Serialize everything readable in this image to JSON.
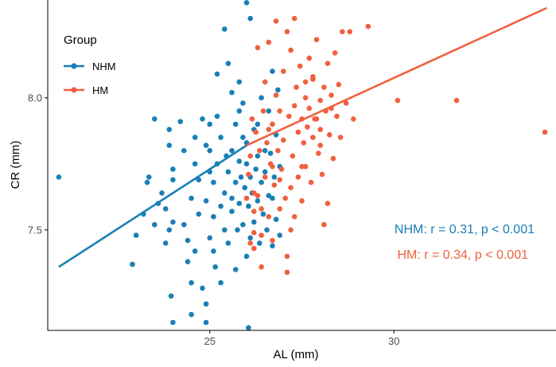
{
  "colors": {
    "nhm": "#1a7fb5",
    "hm": "#f0603f",
    "axis": "#000000",
    "text": "#000000",
    "tick_text": "#4d4d4d"
  },
  "chart_data": {
    "type": "scatter",
    "title": "",
    "xlabel": "AL (mm)",
    "ylabel": "CR (mm)",
    "xlim": [
      20.6,
      34.4
    ],
    "ylim": [
      7.12,
      8.37
    ],
    "xticks": [
      25,
      30
    ],
    "yticks": [
      7.5,
      8.0
    ],
    "grid": false,
    "legend": {
      "title": "Group",
      "position": "top-left",
      "entries": [
        "NHM",
        "HM"
      ]
    },
    "annotations": [
      {
        "text": "NHM: r = 0.31, p < 0.001",
        "series": "NHM"
      },
      {
        "text": "HM: r = 0.34, p < 0.001",
        "series": "HM"
      }
    ],
    "series": [
      {
        "name": "NHM",
        "points": [
          [
            20.9,
            7.7
          ],
          [
            22.9,
            7.37
          ],
          [
            23.0,
            7.48
          ],
          [
            23.2,
            7.56
          ],
          [
            23.3,
            7.68
          ],
          [
            23.35,
            7.7
          ],
          [
            23.5,
            7.52
          ],
          [
            23.5,
            7.92
          ],
          [
            23.6,
            7.6
          ],
          [
            23.7,
            7.64
          ],
          [
            23.8,
            7.45
          ],
          [
            23.8,
            7.58
          ],
          [
            23.9,
            7.82
          ],
          [
            23.9,
            7.5
          ],
          [
            24.0,
            7.73
          ],
          [
            24.0,
            7.69
          ],
          [
            24.0,
            7.53
          ],
          [
            23.95,
            7.25
          ],
          [
            24.0,
            7.15
          ],
          [
            24.2,
            7.91
          ],
          [
            24.3,
            7.8
          ],
          [
            24.3,
            7.52
          ],
          [
            24.4,
            7.46
          ],
          [
            24.4,
            7.38
          ],
          [
            24.5,
            7.62
          ],
          [
            24.5,
            7.3
          ],
          [
            24.6,
            7.42
          ],
          [
            24.6,
            7.85
          ],
          [
            24.7,
            7.69
          ],
          [
            24.7,
            7.56
          ],
          [
            24.8,
            7.28
          ],
          [
            24.8,
            7.92
          ],
          [
            24.9,
            7.61
          ],
          [
            24.9,
            7.82
          ],
          [
            25.0,
            7.47
          ],
          [
            25.0,
            7.72
          ],
          [
            25.0,
            7.9
          ],
          [
            24.9,
            7.15
          ],
          [
            24.9,
            7.22
          ],
          [
            25.1,
            7.55
          ],
          [
            25.1,
            7.68
          ],
          [
            25.1,
            7.42
          ],
          [
            25.15,
            7.36
          ],
          [
            25.2,
            7.75
          ],
          [
            25.2,
            7.93
          ],
          [
            25.3,
            7.59
          ],
          [
            25.3,
            7.3
          ],
          [
            25.3,
            7.85
          ],
          [
            25.4,
            7.64
          ],
          [
            25.4,
            7.5
          ],
          [
            25.45,
            7.78
          ],
          [
            25.5,
            8.13
          ],
          [
            25.5,
            7.72
          ],
          [
            25.5,
            7.45
          ],
          [
            25.6,
            7.62
          ],
          [
            25.6,
            7.8
          ],
          [
            25.6,
            7.57
          ],
          [
            25.7,
            7.9
          ],
          [
            25.7,
            7.68
          ],
          [
            25.7,
            7.35
          ],
          [
            25.75,
            7.5
          ],
          [
            25.8,
            7.76
          ],
          [
            25.8,
            8.06
          ],
          [
            25.8,
            7.6
          ],
          [
            25.85,
            7.7
          ],
          [
            25.9,
            7.85
          ],
          [
            25.9,
            7.52
          ],
          [
            25.9,
            7.98
          ],
          [
            25.95,
            7.66
          ],
          [
            26.0,
            7.4
          ],
          [
            26.0,
            7.75
          ],
          [
            26.0,
            7.83
          ],
          [
            26.05,
            7.59
          ],
          [
            26.1,
            7.7
          ],
          [
            26.1,
            7.47
          ],
          [
            26.15,
            7.64
          ],
          [
            26.2,
            7.88
          ],
          [
            26.2,
            7.53
          ],
          [
            26.25,
            7.73
          ],
          [
            26.3,
            7.61
          ],
          [
            26.3,
            7.78
          ],
          [
            26.35,
            7.45
          ],
          [
            26.4,
            7.68
          ],
          [
            26.4,
            8.0
          ],
          [
            26.45,
            7.56
          ],
          [
            26.5,
            7.8
          ],
          [
            26.5,
            7.72
          ],
          [
            26.55,
            7.5
          ],
          [
            26.6,
            7.95
          ],
          [
            26.6,
            7.63
          ],
          [
            26.65,
            7.79
          ],
          [
            26.7,
            7.44
          ],
          [
            26.7,
            8.1
          ],
          [
            26.75,
            7.7
          ],
          [
            26.8,
            7.86
          ],
          [
            26.8,
            7.54
          ],
          [
            26.85,
            8.03
          ],
          [
            26.9,
            7.74
          ],
          [
            26.9,
            7.48
          ],
          [
            25.2,
            8.09
          ],
          [
            26.0,
            8.36
          ],
          [
            26.1,
            8.3
          ],
          [
            25.4,
            8.26
          ],
          [
            25.6,
            8.02
          ],
          [
            26.05,
            7.13
          ],
          [
            24.5,
            7.18
          ],
          [
            25.8,
            7.95
          ],
          [
            26.3,
            7.9
          ],
          [
            25.0,
            7.8
          ],
          [
            24.6,
            7.75
          ],
          [
            23.9,
            7.88
          ],
          [
            26.7,
            7.62
          ]
        ]
      },
      {
        "name": "HM",
        "points": [
          [
            26.0,
            7.62
          ],
          [
            26.05,
            7.71
          ],
          [
            26.1,
            7.78
          ],
          [
            26.1,
            7.45
          ],
          [
            26.15,
            7.92
          ],
          [
            26.2,
            7.57
          ],
          [
            26.2,
            7.64
          ],
          [
            26.25,
            7.87
          ],
          [
            26.3,
            7.63
          ],
          [
            26.35,
            7.8
          ],
          [
            26.4,
            7.48
          ],
          [
            26.45,
            7.95
          ],
          [
            26.5,
            8.06
          ],
          [
            26.5,
            7.7
          ],
          [
            26.55,
            7.83
          ],
          [
            26.6,
            7.55
          ],
          [
            26.6,
            8.21
          ],
          [
            26.65,
            7.75
          ],
          [
            26.7,
            7.9
          ],
          [
            26.7,
            7.46
          ],
          [
            26.75,
            7.67
          ],
          [
            26.8,
            8.01
          ],
          [
            26.85,
            7.8
          ],
          [
            26.9,
            7.58
          ],
          [
            26.9,
            7.95
          ],
          [
            26.95,
            7.73
          ],
          [
            27.0,
            8.1
          ],
          [
            27.0,
            7.84
          ],
          [
            27.05,
            7.62
          ],
          [
            27.1,
            8.25
          ],
          [
            27.1,
            7.4
          ],
          [
            27.15,
            7.93
          ],
          [
            27.2,
            7.66
          ],
          [
            27.2,
            8.18
          ],
          [
            27.25,
            7.78
          ],
          [
            27.3,
            7.55
          ],
          [
            27.3,
            7.97
          ],
          [
            27.35,
            8.04
          ],
          [
            27.4,
            7.87
          ],
          [
            27.4,
            7.7
          ],
          [
            27.45,
            8.12
          ],
          [
            27.5,
            7.92
          ],
          [
            27.5,
            7.61
          ],
          [
            27.55,
            7.83
          ],
          [
            27.6,
            8.0
          ],
          [
            27.6,
            7.74
          ],
          [
            27.65,
            7.89
          ],
          [
            27.7,
            8.15
          ],
          [
            27.7,
            7.96
          ],
          [
            27.75,
            7.68
          ],
          [
            27.8,
            7.85
          ],
          [
            27.8,
            8.07
          ],
          [
            27.85,
            7.92
          ],
          [
            27.9,
            8.22
          ],
          [
            27.95,
            7.79
          ],
          [
            28.0,
            7.99
          ],
          [
            28.0,
            7.88
          ],
          [
            28.05,
            7.71
          ],
          [
            28.1,
            8.04
          ],
          [
            28.1,
            7.52
          ],
          [
            28.15,
            7.95
          ],
          [
            28.2,
            8.13
          ],
          [
            28.25,
            7.86
          ],
          [
            28.3,
            8.01
          ],
          [
            28.35,
            7.77
          ],
          [
            28.4,
            8.17
          ],
          [
            28.45,
            7.93
          ],
          [
            28.5,
            8.05
          ],
          [
            28.55,
            7.85
          ],
          [
            28.6,
            8.25
          ],
          [
            28.7,
            7.98
          ],
          [
            28.8,
            8.25
          ],
          [
            28.9,
            7.92
          ],
          [
            29.3,
            8.27
          ],
          [
            30.1,
            7.99
          ],
          [
            31.7,
            7.99
          ],
          [
            34.1,
            7.87
          ],
          [
            27.1,
            7.34
          ],
          [
            26.2,
            7.43
          ],
          [
            26.4,
            7.36
          ],
          [
            26.8,
            8.29
          ],
          [
            27.3,
            8.3
          ],
          [
            26.9,
            7.69
          ],
          [
            27.5,
            7.74
          ],
          [
            28.0,
            7.82
          ],
          [
            27.2,
            7.5
          ],
          [
            26.6,
            7.88
          ],
          [
            27.6,
            8.06
          ],
          [
            28.3,
            7.96
          ],
          [
            26.3,
            8.19
          ],
          [
            26.4,
            7.58
          ],
          [
            26.7,
            7.74
          ],
          [
            27.9,
            7.92
          ],
          [
            28.2,
            7.6
          ],
          [
            26.2,
            7.49
          ],
          [
            27.8,
            8.08
          ]
        ]
      }
    ],
    "regression_lines": [
      {
        "series": "NHM",
        "x": [
          20.9,
          26.0
        ],
        "y": [
          7.36,
          7.82
        ]
      },
      {
        "series": "HM",
        "x": [
          26.0,
          34.15
        ],
        "y": [
          7.82,
          8.34
        ]
      }
    ]
  }
}
